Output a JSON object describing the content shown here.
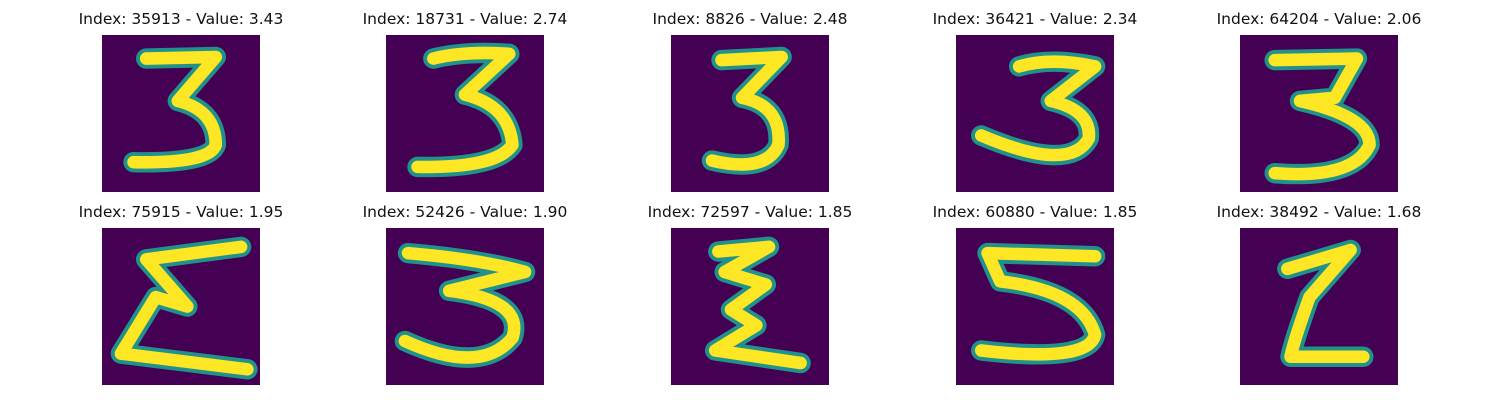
{
  "colors": {
    "background": "#440154",
    "mid": "#21918c",
    "stroke": "#fde725"
  },
  "panels": [
    {
      "title": "Index: 35913 - Value: 3.43",
      "digit": "3",
      "image": "digit-3-image"
    },
    {
      "title": "Index: 18731 - Value: 2.74",
      "digit": "3",
      "image": "digit-3-image"
    },
    {
      "title": "Index: 8826 - Value: 2.48",
      "digit": "3",
      "image": "digit-3-image"
    },
    {
      "title": "Index: 36421 - Value: 2.34",
      "digit": "3",
      "image": "digit-3-image"
    },
    {
      "title": "Index: 64204 - Value: 2.06",
      "digit": "3",
      "image": "digit-3-image"
    },
    {
      "title": "Index: 75915 - Value: 1.95",
      "digit": "3",
      "image": "digit-3-image"
    },
    {
      "title": "Index: 52426 - Value: 1.90",
      "digit": "3",
      "image": "digit-3-image"
    },
    {
      "title": "Index: 72597 - Value: 1.85",
      "digit": "3",
      "image": "digit-3-image"
    },
    {
      "title": "Index: 60880 - Value: 1.85",
      "digit": "5",
      "image": "digit-5-image"
    },
    {
      "title": "Index: 38492 - Value: 1.68",
      "digit": "2",
      "image": "digit-2-image"
    }
  ]
}
